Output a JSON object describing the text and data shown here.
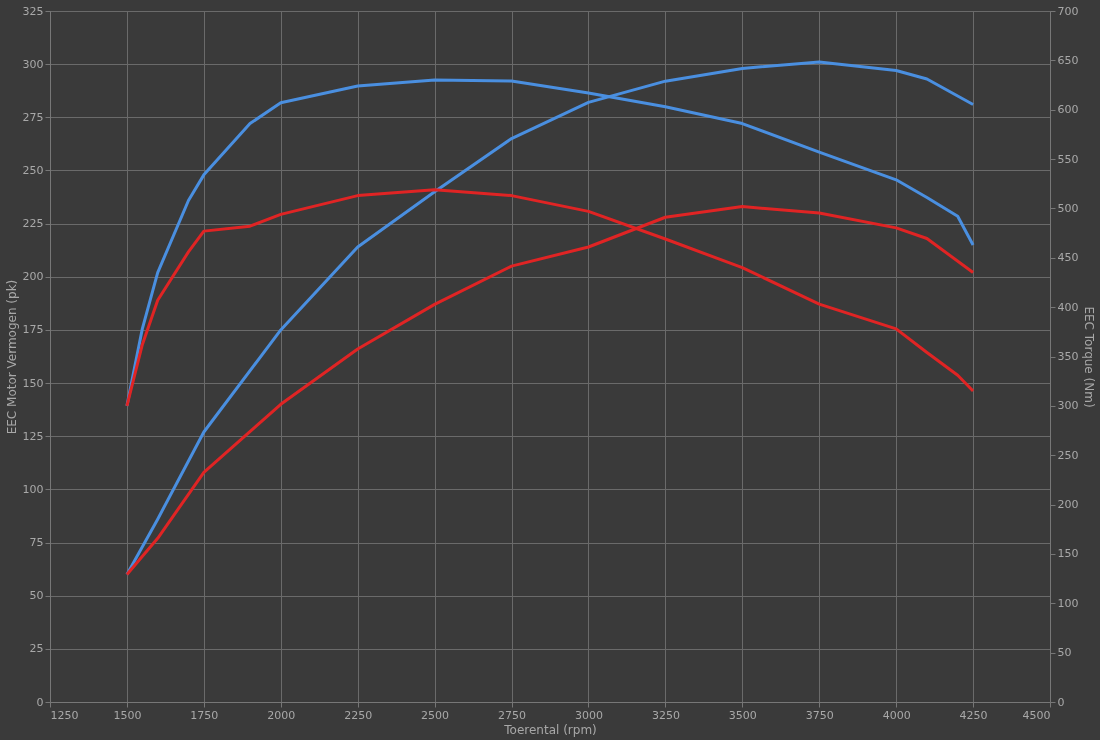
{
  "chart_data": {
    "type": "line",
    "xlabel": "Toerental (rpm)",
    "ylabel": "EEC Motor Vermogen (pk)",
    "y2label": "EEC Torque (Nm)",
    "xlim": [
      1250,
      4500
    ],
    "xticks": [
      1250,
      1500,
      1750,
      2000,
      2250,
      2500,
      2750,
      3000,
      3250,
      3500,
      3750,
      4000,
      4250,
      4500
    ],
    "ylim": [
      0,
      325
    ],
    "yticks": [
      0,
      25,
      50,
      75,
      100,
      125,
      150,
      175,
      200,
      225,
      250,
      275,
      300,
      325
    ],
    "y2lim": [
      0,
      700
    ],
    "y2ticks": [
      0,
      50,
      100,
      150,
      200,
      250,
      300,
      350,
      400,
      450,
      500,
      550,
      600,
      650,
      700
    ],
    "grid": true,
    "marker": "none",
    "line_style": "solid",
    "series": [
      {
        "color": "#4a8fe0",
        "x": [
          1500,
          1600,
          1750,
          2000,
          2250,
          2500,
          2750,
          3000,
          3250,
          3500,
          3750,
          4000,
          4100,
          4250
        ],
        "values": [
          60,
          86,
          127,
          175,
          214,
          240,
          265,
          282,
          292,
          298,
          301,
          297,
          293,
          281
        ]
      },
      {
        "color": "#e02424",
        "x": [
          1500,
          1600,
          1750,
          2000,
          2250,
          2500,
          2750,
          3000,
          3250,
          3500,
          3750,
          4000,
          4100,
          4250
        ],
        "values": [
          60,
          77,
          108,
          140,
          166,
          187,
          205,
          214,
          228,
          233,
          230,
          223,
          218,
          202
        ]
      },
      {
        "color": "#4a8fe0",
        "axis": "y2",
        "x": [
          1500,
          1550,
          1600,
          1700,
          1750,
          1900,
          2000,
          2250,
          2500,
          2750,
          3000,
          3250,
          3500,
          3750,
          4000,
          4100,
          4200,
          4250
        ],
        "values": [
          300,
          378,
          435,
          508,
          534,
          586,
          607,
          624,
          630,
          629,
          617,
          603,
          586,
          557,
          529,
          511,
          492,
          463
        ]
      },
      {
        "color": "#e02424",
        "axis": "y2",
        "x": [
          1500,
          1550,
          1600,
          1700,
          1750,
          1900,
          2000,
          2250,
          2500,
          2750,
          3000,
          3250,
          3500,
          3750,
          4000,
          4100,
          4200,
          4250
        ],
        "values": [
          300,
          362,
          407,
          456,
          477,
          482,
          494,
          513,
          519,
          513,
          497,
          469,
          440,
          403,
          378,
          354,
          331,
          315
        ]
      }
    ]
  }
}
